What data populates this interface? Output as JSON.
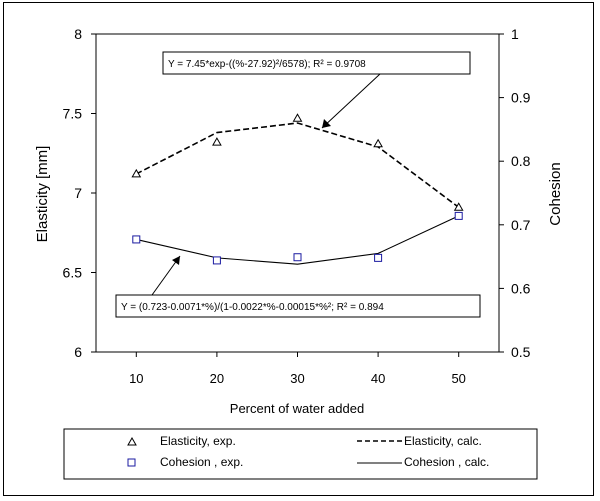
{
  "chart_data": {
    "type": "line",
    "xlabel": "Percent of water added",
    "ylabel_left": "Elasticity [mm]",
    "ylabel_right": "Cohesion",
    "x_ticks": [
      "10",
      "20",
      "30",
      "40",
      "50"
    ],
    "y_left_ticks": [
      "6",
      "6.5",
      "7",
      "7.5",
      "8"
    ],
    "y_right_ticks": [
      "0.5",
      "0.6",
      "0.7",
      "0.8",
      "0.9",
      "1"
    ],
    "xlim": [
      5,
      55
    ],
    "ylim_left": [
      6,
      8
    ],
    "ylim_right": [
      0.5,
      1
    ],
    "grid": false,
    "elasticity_exp": {
      "x": [
        10,
        20,
        30,
        40,
        50
      ],
      "y": [
        7.12,
        7.32,
        7.47,
        7.31,
        6.91
      ]
    },
    "elasticity_calc": {
      "x": [
        10,
        20,
        30,
        40,
        50
      ],
      "y": [
        7.12,
        7.38,
        7.44,
        7.29,
        6.91
      ]
    },
    "cohesion_exp": {
      "x": [
        10,
        20,
        30,
        40,
        50
      ],
      "y": [
        0.677,
        0.644,
        0.649,
        0.648,
        0.714
      ]
    },
    "cohesion_calc": {
      "x": [
        10,
        20,
        30,
        40,
        50
      ],
      "y": [
        0.677,
        0.648,
        0.638,
        0.655,
        0.714
      ]
    },
    "annotation_elasticity": "Y = 7.45*exp-((%-27.92)²/6578); R² = 0.9708",
    "annotation_cohesion": "Y = (0.723-0.0071*%)/(1-0.0022*%-0.00015*%²; R² = 0.894",
    "legend": {
      "elasticity_exp": "Elasticity, exp.",
      "elasticity_calc": "Elasticity, calc.",
      "cohesion_exp": "Cohesion , exp.",
      "cohesion_calc": "Cohesion , calc."
    }
  }
}
